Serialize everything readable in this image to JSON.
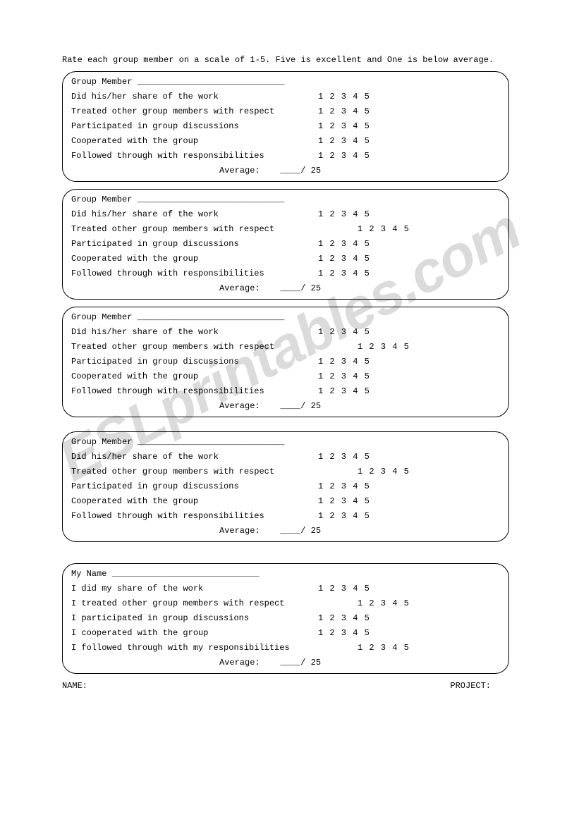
{
  "instruction": "Rate each group member on a scale of 1-5. Five is excellent and One is below average.",
  "member_label": "Group Member",
  "self_label": "My Name",
  "blank_line": "_____________________________",
  "criteria_other": [
    "Did his/her share of the work",
    "Treated other group members with respect",
    "Participated in group discussions",
    "Cooperated with the group",
    "Followed through with responsibilities"
  ],
  "criteria_self": [
    "I did my share of the work",
    "I treated other group members with respect",
    "I participated in group discussions",
    "I cooperated with the group",
    "I followed through with my responsibilities"
  ],
  "scale": "1 2 3 4 5",
  "average_label": "Average:",
  "average_blank": "____/ 25",
  "footer_name": "NAME:",
  "footer_project": "PROJECT:",
  "watermark": "ESLprintables.com"
}
